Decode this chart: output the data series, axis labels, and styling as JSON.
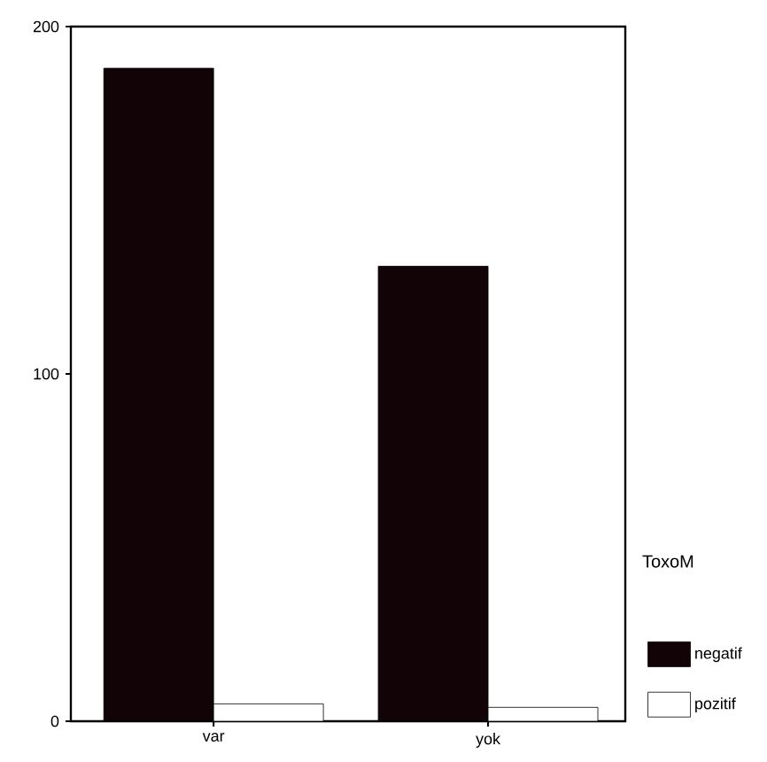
{
  "chart_data": {
    "type": "bar",
    "categories": [
      "var",
      "yok"
    ],
    "legend_title": "ToxoM",
    "legend": "right",
    "ylim": [
      0,
      200
    ],
    "yticks": [
      0,
      100,
      200
    ],
    "grid": false,
    "series": [
      {
        "name": "negatif",
        "color": "#120306",
        "values": [
          188,
          131
        ]
      },
      {
        "name": "pozitif",
        "color": "#ffffff",
        "values": [
          5,
          4
        ]
      }
    ]
  }
}
